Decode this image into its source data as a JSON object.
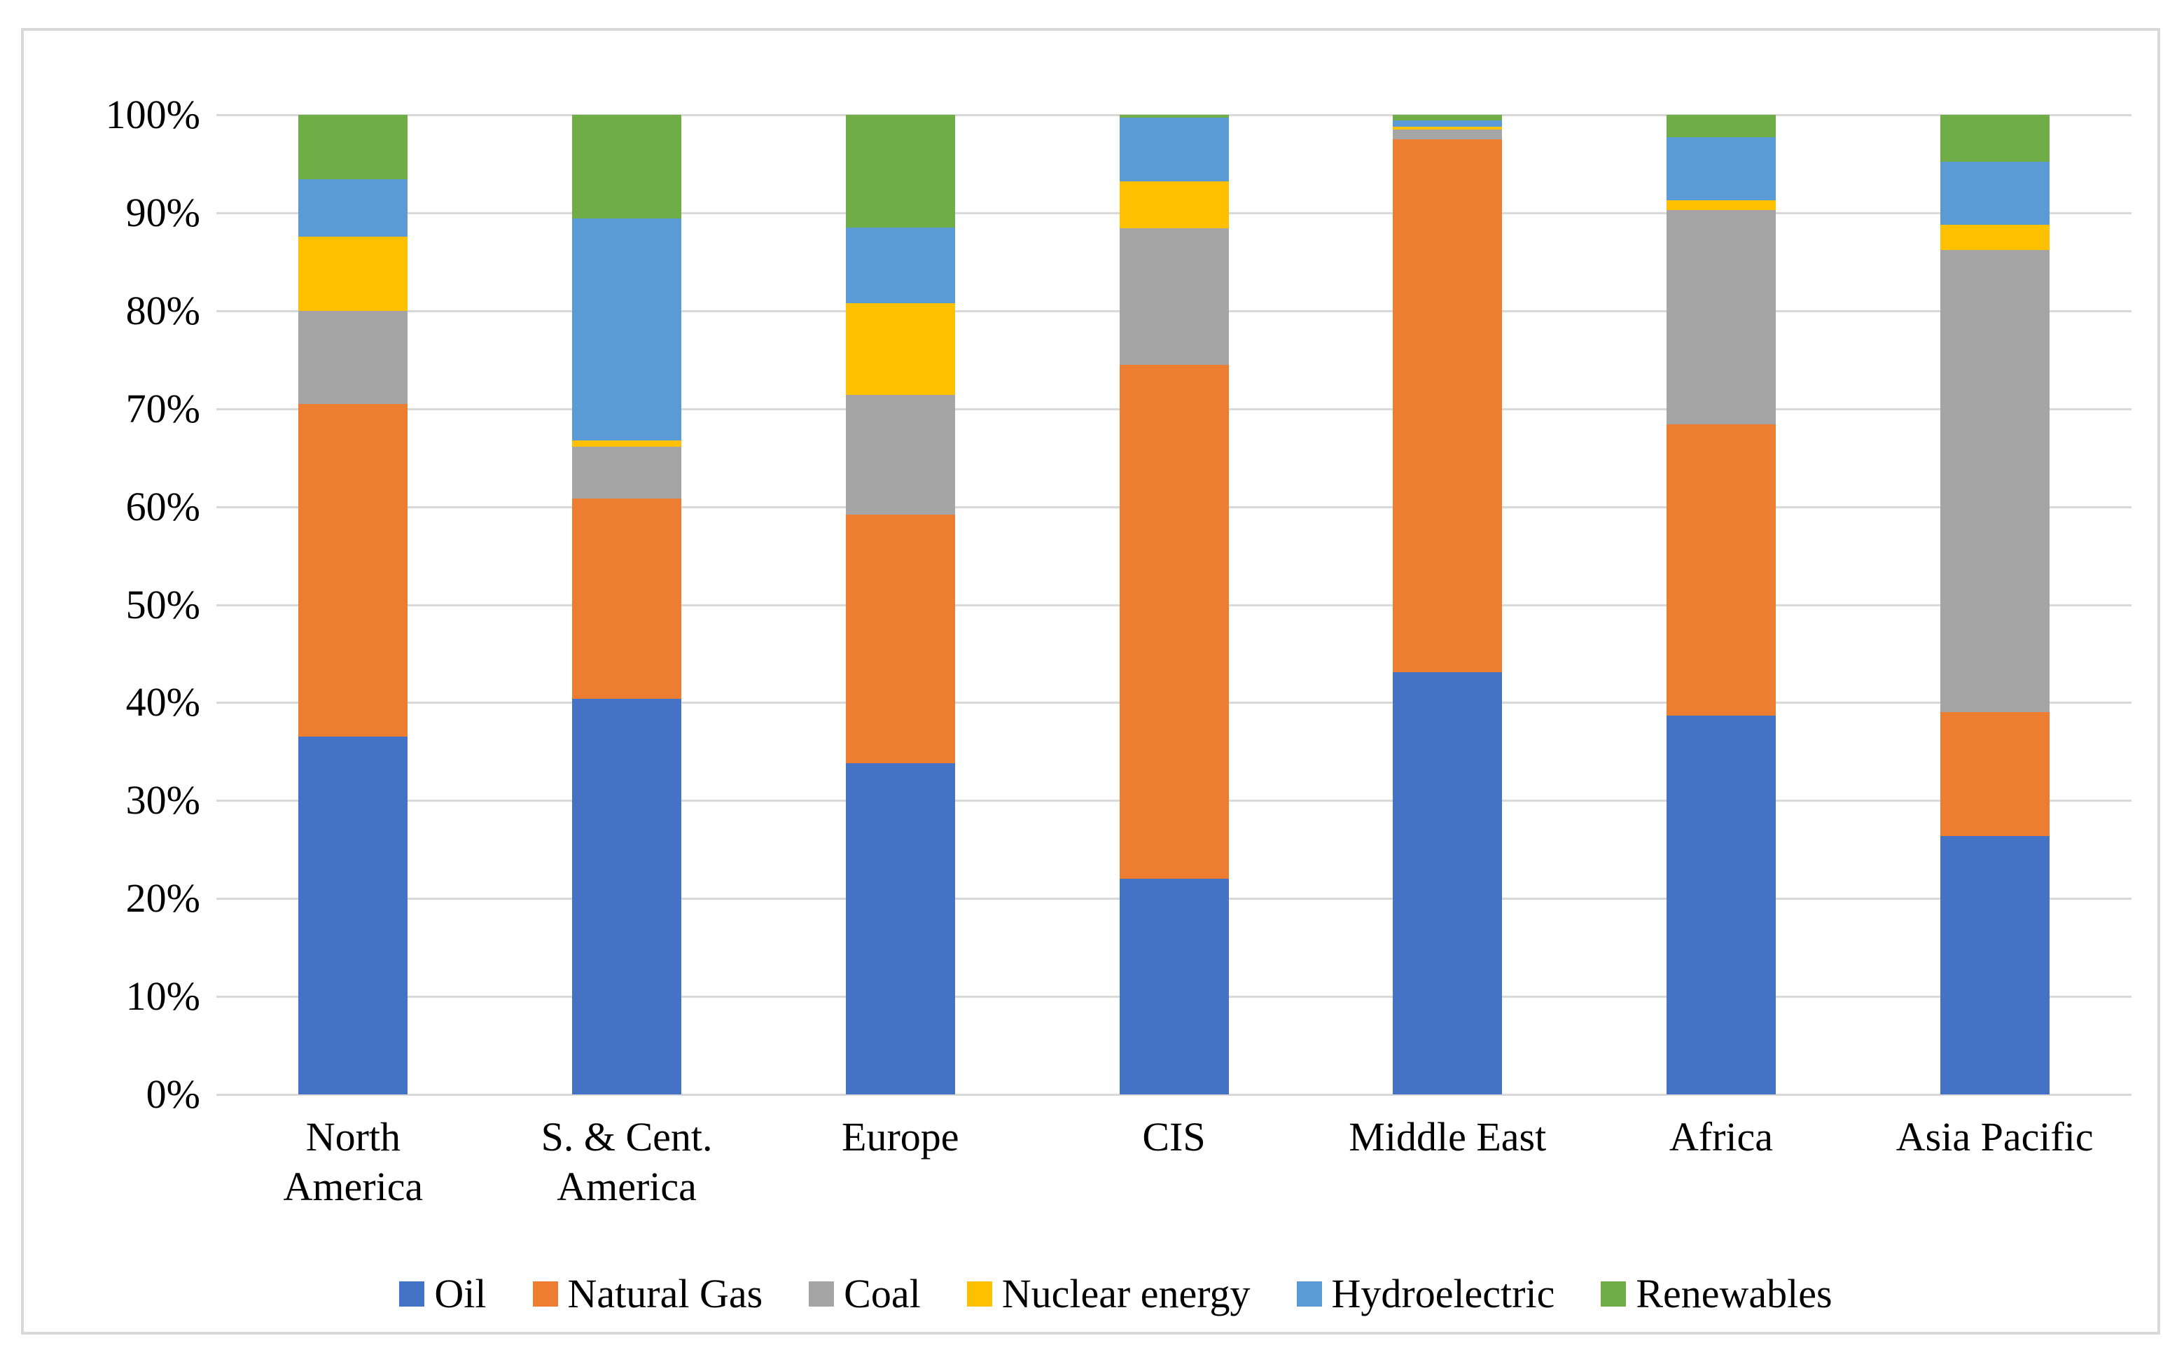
{
  "figure": {
    "background_color": "#ffffff",
    "frame_border_color": "#d9d9d9",
    "text_color": "#000000"
  },
  "chart_data": {
    "type": "bar",
    "stacking": "percent",
    "orientation": "vertical",
    "title": "",
    "xlabel": "",
    "ylabel": "",
    "categories": [
      "North\nAmerica",
      "S. & Cent.\nAmerica",
      "Europe",
      "CIS",
      "Middle East",
      "Africa",
      "Asia Pacific"
    ],
    "series": [
      {
        "name": "Oil",
        "color": "#4472C4",
        "values": [
          36.5,
          40.4,
          33.8,
          22.0,
          43.1,
          38.7,
          26.4
        ]
      },
      {
        "name": "Natural Gas",
        "color": "#ED7D31",
        "values": [
          34.0,
          20.4,
          25.4,
          52.5,
          54.4,
          29.7,
          12.6
        ]
      },
      {
        "name": "Coal",
        "color": "#A5A5A5",
        "values": [
          9.5,
          5.3,
          12.2,
          13.9,
          1.0,
          21.9,
          47.2
        ]
      },
      {
        "name": "Nuclear energy",
        "color": "#FFC000",
        "values": [
          7.6,
          0.7,
          9.4,
          4.8,
          0.3,
          1.0,
          2.6
        ]
      },
      {
        "name": "Hydroelectric",
        "color": "#5B9BD5",
        "values": [
          5.8,
          22.6,
          7.7,
          6.5,
          0.6,
          6.4,
          6.4
        ]
      },
      {
        "name": "Renewables",
        "color": "#70AD47",
        "values": [
          6.6,
          10.6,
          11.5,
          0.3,
          0.6,
          2.3,
          4.8
        ]
      }
    ],
    "y_axis": {
      "min": 0,
      "max": 100,
      "tick_interval": 10,
      "ticks": [
        "0%",
        "10%",
        "20%",
        "30%",
        "40%",
        "50%",
        "60%",
        "70%",
        "80%",
        "90%",
        "100%"
      ]
    },
    "grid": {
      "show": true,
      "color": "#d9d9d9"
    },
    "legend": {
      "position": "bottom",
      "entries": [
        "Oil",
        "Natural Gas",
        "Coal",
        "Nuclear energy",
        "Hydroelectric",
        "Renewables"
      ]
    }
  }
}
